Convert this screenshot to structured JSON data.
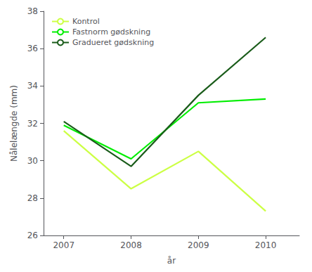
{
  "chart_data": {
    "type": "line",
    "x": [
      2007,
      2008,
      2009,
      2010
    ],
    "series": [
      {
        "name": "Kontrol",
        "color": "#ccff44",
        "values": [
          31.6,
          28.5,
          30.5,
          27.3
        ]
      },
      {
        "name": "Fastnorm gødskning",
        "color": "#00ee00",
        "values": [
          31.9,
          30.1,
          33.1,
          33.3
        ]
      },
      {
        "name": "Gradueret gødskning",
        "color": "#1a5c1a",
        "values": [
          32.1,
          29.7,
          33.5,
          36.6
        ]
      }
    ],
    "xlabel": "år",
    "ylabel": "Nålelængde (mm)",
    "xlim": [
      2006.7,
      2010.5
    ],
    "xticks": [
      2007,
      2008,
      2009,
      2010
    ],
    "ylim": [
      26,
      38
    ],
    "yticks": [
      26,
      28,
      30,
      32,
      34,
      36,
      38
    ],
    "grid": false,
    "legend": "upper left"
  }
}
